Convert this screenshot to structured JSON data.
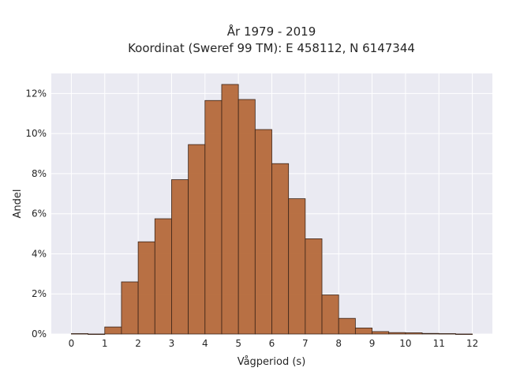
{
  "chart_data": {
    "type": "bar",
    "title": "År 1979 - 2019",
    "subtitle": "Koordinat (Sweref 99 TM): E 458112, N 6147344",
    "xlabel": "Vågperiod (s)",
    "ylabel": "Andel",
    "bin_width": 0.5,
    "bin_starts": [
      0,
      0.5,
      1,
      1.5,
      2,
      2.5,
      3,
      3.5,
      4,
      4.5,
      5,
      5.5,
      6,
      6.5,
      7,
      7.5,
      8,
      8.5,
      9,
      9.5,
      10,
      10.5,
      11,
      11.5
    ],
    "values": [
      0.02,
      0.0,
      0.35,
      2.6,
      4.6,
      5.75,
      7.7,
      9.45,
      11.65,
      12.45,
      11.7,
      10.2,
      8.5,
      6.75,
      4.75,
      1.95,
      0.78,
      0.3,
      0.12,
      0.07,
      0.06,
      0.03,
      0.02,
      0.0
    ],
    "value_unit": "%",
    "xlim": [
      -0.6,
      12.6
    ],
    "ylim": [
      0,
      13
    ],
    "xticks": [
      0,
      1,
      2,
      3,
      4,
      5,
      6,
      7,
      8,
      9,
      10,
      11,
      12
    ],
    "yticks": [
      0,
      2,
      4,
      6,
      8,
      10,
      12
    ],
    "ytick_labels": [
      "0%",
      "2%",
      "4%",
      "6%",
      "8%",
      "10%",
      "12%"
    ],
    "grid": true,
    "bar_color": "#b5693a",
    "bar_edge_color": "#3a2418",
    "plot_background": "#eaeaf2"
  }
}
